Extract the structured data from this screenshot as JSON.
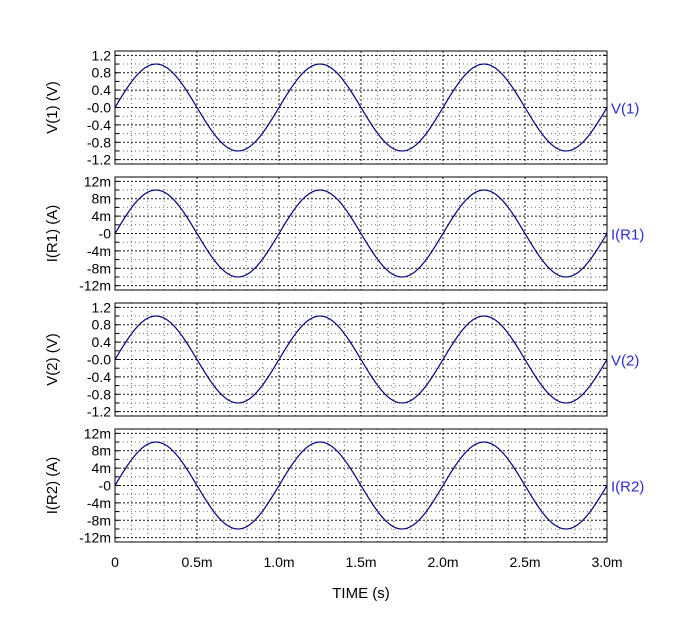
{
  "chart_data": {
    "type": "line",
    "shared_x": {
      "label": "TIME (s)",
      "range": [
        0,
        0.003
      ],
      "ticks": [
        0,
        0.0005,
        0.001,
        0.0015,
        0.002,
        0.0025,
        0.003
      ],
      "tick_labels": [
        "0",
        "0.5m",
        "1.0m",
        "1.5m",
        "2.0m",
        "2.5m",
        "3.0m"
      ]
    },
    "waveform": {
      "shape": "sine",
      "frequency_hz": 1000,
      "cycles": 3,
      "start_phase_deg": 0
    },
    "grid": true,
    "panels": [
      {
        "ylabel": "V(1)  (V)",
        "trace_label": "V(1)",
        "amplitude": 1.0,
        "ylim": [
          -1.3,
          1.3
        ],
        "yticks": [
          1.2,
          0.8,
          0.4,
          0.0,
          -0.4,
          -0.8,
          -1.2
        ],
        "ytick_labels": [
          "1.2",
          "0.8",
          "0.4",
          "-0.0",
          "-0.4",
          "-0.8",
          "-1.2"
        ],
        "yminor": [
          1.0,
          0.6,
          0.2,
          -0.2,
          -0.6,
          -1.0
        ]
      },
      {
        "ylabel": "I(R1)  (A)",
        "trace_label": "I(R1)",
        "amplitude": 0.01,
        "ylim": [
          -0.013,
          0.013
        ],
        "yticks": [
          0.012,
          0.008,
          0.004,
          0,
          -0.004,
          -0.008,
          -0.012
        ],
        "ytick_labels": [
          "12m",
          "8m",
          "4m",
          "-0",
          "-4m",
          "-8m",
          "-12m"
        ],
        "yminor": [
          0.01,
          0.006,
          0.002,
          -0.002,
          -0.006,
          -0.01
        ]
      },
      {
        "ylabel": "V(2)  (V)",
        "trace_label": "V(2)",
        "amplitude": 1.0,
        "ylim": [
          -1.3,
          1.3
        ],
        "yticks": [
          1.2,
          0.8,
          0.4,
          0.0,
          -0.4,
          -0.8,
          -1.2
        ],
        "ytick_labels": [
          "1.2",
          "0.8",
          "0.4",
          "-0.0",
          "-0.4",
          "-0.8",
          "-1.2"
        ],
        "yminor": [
          1.0,
          0.6,
          0.2,
          -0.2,
          -0.6,
          -1.0
        ]
      },
      {
        "ylabel": "I(R2)  (A)",
        "trace_label": "I(R2)",
        "amplitude": 0.01,
        "ylim": [
          -0.013,
          0.013
        ],
        "yticks": [
          0.012,
          0.008,
          0.004,
          0,
          -0.004,
          -0.008,
          -0.012
        ],
        "ytick_labels": [
          "12m",
          "8m",
          "4m",
          "-0",
          "-4m",
          "-8m",
          "-12m"
        ],
        "yminor": [
          0.01,
          0.006,
          0.002,
          -0.002,
          -0.006,
          -0.01
        ]
      }
    ]
  },
  "colors": {
    "trace": "#00007f",
    "trace_label": "#2b2bd6",
    "axis_text": "#000000",
    "grid": "#000000",
    "frame": "#000000"
  }
}
